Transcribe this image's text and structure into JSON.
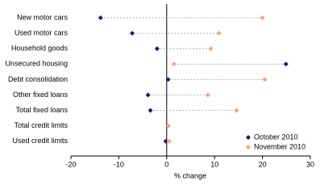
{
  "chart_data": {
    "type": "dot",
    "x_label": "% change",
    "categories": [
      "New motor cars",
      "Used motor cars",
      "Household goods",
      "Unsecured housing",
      "Debt consolidation",
      "Other fixed loans",
      "Total fixed loans",
      "Total credit limits",
      "Used credit limits"
    ],
    "series": [
      {
        "name": "October 2010",
        "color": "#0b1f6e",
        "values": [
          -13.8,
          -7.2,
          -2.0,
          24.9,
          0.3,
          -3.9,
          -3.4,
          0.3,
          -0.2
        ]
      },
      {
        "name": "November 2010",
        "color": "#f4a582",
        "values": [
          20.0,
          10.9,
          9.2,
          1.5,
          20.5,
          8.6,
          14.6,
          0.3,
          0.5
        ]
      }
    ],
    "xlim": [
      -20,
      30
    ],
    "xticks": [
      -20,
      -10,
      0,
      10,
      20,
      30
    ],
    "legend": "lower right"
  }
}
